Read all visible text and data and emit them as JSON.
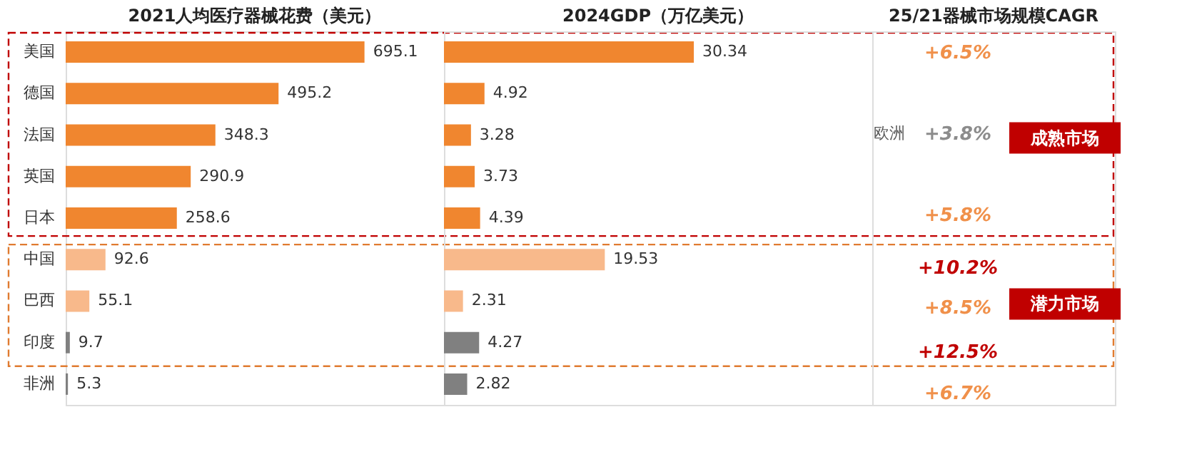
{
  "chart_data": [
    {
      "type": "bar",
      "orientation": "horizontal",
      "title": "2021人均医疗器械花费（美元）",
      "categories": [
        "美国",
        "德国",
        "法国",
        "英国",
        "日本",
        "中国",
        "巴西",
        "印度",
        "非洲"
      ],
      "values": [
        695.1,
        495.2,
        348.3,
        290.9,
        258.6,
        92.6,
        55.1,
        9.7,
        5.3
      ],
      "colors": [
        "#f0862f",
        "#f0862f",
        "#f0862f",
        "#f0862f",
        "#f0862f",
        "#f8b98b",
        "#f8b98b",
        "#808080",
        "#808080"
      ],
      "xlim": [
        0,
        880
      ],
      "data_labels": true,
      "grid": false,
      "tick_labels": "y"
    },
    {
      "type": "bar",
      "orientation": "horizontal",
      "title": "2024GDP（万亿美元）",
      "categories": [
        null,
        null,
        null,
        null,
        null,
        null,
        null,
        null,
        null
      ],
      "values": [
        30.34,
        4.92,
        3.28,
        3.73,
        4.39,
        19.53,
        2.31,
        4.27,
        2.82
      ],
      "colors": [
        "#f0862f",
        "#f0862f",
        "#f0862f",
        "#f0862f",
        "#f0862f",
        "#f8b98b",
        "#f8b98b",
        "#808080",
        "#808080"
      ],
      "xlim": [
        0,
        52
      ],
      "data_labels": true,
      "grid": false,
      "tick_labels": false
    },
    {
      "type": "other",
      "title": "25/21器械市场规模CAGR",
      "annotations": [
        "+6.5%",
        "欧洲",
        "+3.8%",
        "+5.8%",
        "+10.2%",
        "+8.5%",
        "+12.5%",
        "+6.7%",
        "成熟市场",
        "潜力市场"
      ],
      "colors": [
        "#f0904a",
        "#595959",
        "#8c8c8c",
        "#f0904a",
        "#c00000",
        "#f0904a",
        "#c00000",
        "#f0904a",
        "#c00000",
        "#c00000"
      ]
    }
  ]
}
